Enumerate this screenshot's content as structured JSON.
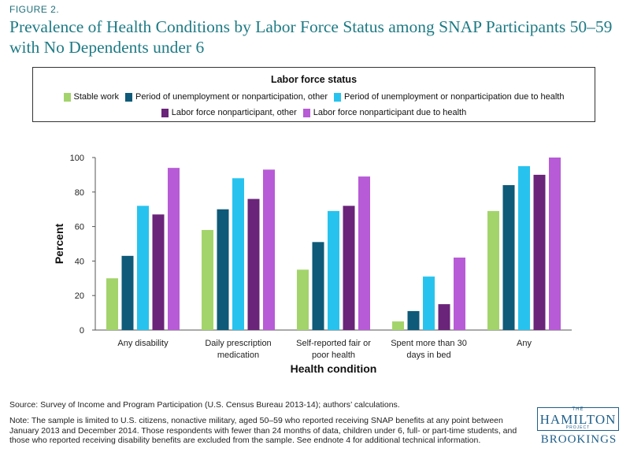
{
  "figure_label": "FIGURE 2.",
  "title": "Prevalence of Health Conditions by Labor Force Status among SNAP Participants 50–59 with No Dependents under 6",
  "colors": {
    "title": "#1e7b85",
    "stable_work": "#a3d46b",
    "unemp_other": "#0e5a78",
    "unemp_health": "#27c3ee",
    "nonpart_other": "#6a2479",
    "nonpart_health": "#b75bd6"
  },
  "chart_data": {
    "type": "bar",
    "legend_title": "Labor force status",
    "legend_placement": "top",
    "xlabel": "Health condition",
    "ylabel": "Percent",
    "ylim": [
      0,
      100
    ],
    "yticks": [
      0,
      20,
      40,
      60,
      80,
      100
    ],
    "grid": false,
    "categories": [
      [
        "Any disability"
      ],
      [
        "Daily prescription",
        "medication"
      ],
      [
        "Self-reported fair or",
        "poor health"
      ],
      [
        "Spent more than 30",
        "days in bed"
      ],
      [
        "Any"
      ]
    ],
    "series": [
      {
        "name": "Stable work",
        "color": "#a3d46b",
        "values": [
          30,
          58,
          35,
          5,
          69
        ]
      },
      {
        "name": "Period of unemployment or nonparticipation, other",
        "color": "#0e5a78",
        "values": [
          43,
          70,
          51,
          11,
          84
        ]
      },
      {
        "name": "Period of unemployment or nonparticipation due to health",
        "color": "#27c3ee",
        "values": [
          72,
          88,
          69,
          31,
          95
        ]
      },
      {
        "name": "Labor force nonparticipant, other",
        "color": "#6a2479",
        "values": [
          67,
          76,
          72,
          15,
          90
        ]
      },
      {
        "name": "Labor force nonparticipant due to health",
        "color": "#b75bd6",
        "values": [
          94,
          93,
          89,
          42,
          100
        ]
      }
    ]
  },
  "source": "Source: Survey of Income and Program Participation (U.S. Census Bureau 2013-14); authors’ calculations.",
  "note": "Note: The sample is limited to U.S. citizens, nonactive military, aged 50–59 who reported receiving SNAP benefits at any point between January 2013 and December 2014. Those respondents with fewer than 24 months of data, children under 6, full- or part-time students, and those who reported receiving disability benefits are excluded from the sample. See endnote 4 for additional technical information.",
  "logo": {
    "the": "THE",
    "hamilton": "HAMILTON",
    "project": "PROJECT",
    "brookings": "BROOKINGS"
  }
}
